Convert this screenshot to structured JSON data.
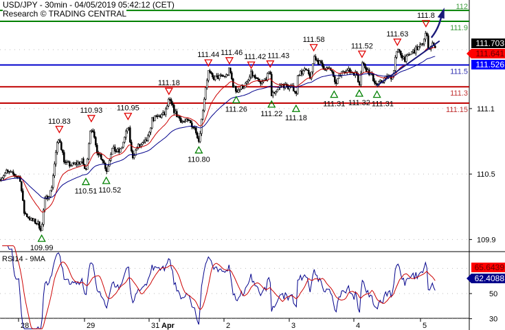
{
  "header": {
    "title": "USD/JPY - 30min - 04/05/2019 05:42:12 (CET)",
    "source": "Research © TRADING CENTRAL"
  },
  "colors": {
    "candles": "#000000",
    "ma_fast": "#cc0000",
    "ma_slow": "#00008b",
    "target": "#008000",
    "pivot": "#0000cc",
    "support": "#c00000",
    "trendline": "#1a1a7a",
    "resistance_marker": "#e00000",
    "support_marker": "#008000"
  },
  "chart_data": [
    {
      "type": "candlestick",
      "title": "USD/JPY - 30min - 04/05/2019 05:42:12 (CET)",
      "y_ticks": [
        "111.1",
        "110.5",
        "109.9"
      ],
      "x_ticks": [
        "28",
        "29",
        "31",
        "Apr",
        "2",
        "3",
        "4",
        "5"
      ],
      "grid": "dotted horizontal",
      "price_path": [
        [
          "03-27 17:00",
          110.45
        ],
        [
          "03-27 19:30",
          110.52
        ],
        [
          "03-28 00:30",
          110.47
        ],
        [
          "03-28 02:00",
          110.15
        ],
        [
          "03-28 04:30",
          110.08
        ],
        [
          "03-28 07:00",
          110.05
        ],
        [
          "03-28 08:30",
          109.99
        ],
        [
          "03-28 09:30",
          110.25
        ],
        [
          "03-28 12:00",
          110.35
        ],
        [
          "03-28 14:00",
          110.75
        ],
        [
          "03-28 15:00",
          110.83
        ],
        [
          "03-28 17:00",
          110.6
        ],
        [
          "03-28 19:30",
          110.58
        ],
        [
          "03-28 23:30",
          110.62
        ],
        [
          "03-29 00:30",
          110.51
        ],
        [
          "03-29 02:00",
          110.9
        ],
        [
          "03-29 02:30",
          110.93
        ],
        [
          "03-29 04:30",
          110.72
        ],
        [
          "03-29 07:00",
          110.62
        ],
        [
          "03-29 08:00",
          110.52
        ],
        [
          "03-29 10:00",
          110.73
        ],
        [
          "03-29 13:00",
          110.7
        ],
        [
          "03-29 15:00",
          110.85
        ],
        [
          "03-29 16:00",
          110.95
        ],
        [
          "03-29 17:30",
          110.65
        ],
        [
          "03-29 19:30",
          110.75
        ],
        [
          "03-29 22:00",
          110.78
        ],
        [
          "03-31 22:00",
          110.85
        ],
        [
          "03-31 22:30",
          111.0
        ],
        [
          "04-01 02:00",
          111.05
        ],
        [
          "04-01 03:30",
          111.18
        ],
        [
          "04-01 06:00",
          111.05
        ],
        [
          "04-01 08:30",
          110.98
        ],
        [
          "04-01 11:00",
          110.98
        ],
        [
          "04-01 13:30",
          110.9
        ],
        [
          "04-01 14:30",
          110.8
        ],
        [
          "04-01 16:00",
          111.1
        ],
        [
          "04-01 17:00",
          111.3
        ],
        [
          "04-01 18:00",
          111.44
        ],
        [
          "04-01 19:30",
          111.38
        ],
        [
          "04-02 01:00",
          111.4
        ],
        [
          "04-02 02:00",
          111.46
        ],
        [
          "04-02 03:30",
          111.3
        ],
        [
          "04-02 04:30",
          111.26
        ],
        [
          "04-02 08:30",
          111.33
        ],
        [
          "04-02 10:00",
          111.42
        ],
        [
          "04-02 13:30",
          111.32
        ],
        [
          "04-02 17:00",
          111.43
        ],
        [
          "04-02 17:30",
          111.22
        ],
        [
          "04-02 21:00",
          111.32
        ],
        [
          "04-03 02:00",
          111.28
        ],
        [
          "04-03 02:30",
          111.18
        ],
        [
          "04-03 03:00",
          111.42
        ],
        [
          "04-03 06:00",
          111.45
        ],
        [
          "04-03 08:00",
          111.38
        ],
        [
          "04-03 09:00",
          111.58
        ],
        [
          "04-03 12:30",
          111.48
        ],
        [
          "04-03 16:00",
          111.44
        ],
        [
          "04-03 16:30",
          111.31
        ],
        [
          "04-03 20:00",
          111.46
        ],
        [
          "04-04 01:00",
          111.42
        ],
        [
          "04-04 02:00",
          111.32
        ],
        [
          "04-04 03:00",
          111.52
        ],
        [
          "04-04 06:30",
          111.4
        ],
        [
          "04-04 08:30",
          111.31
        ],
        [
          "04-04 11:30",
          111.38
        ],
        [
          "04-04 14:30",
          111.4
        ],
        [
          "04-04 15:00",
          111.55
        ],
        [
          "04-04 16:00",
          111.63
        ],
        [
          "04-04 19:00",
          111.55
        ],
        [
          "04-04 21:30",
          111.62
        ],
        [
          "04-05 00:30",
          111.68
        ],
        [
          "04-05 02:00",
          111.8
        ],
        [
          "04-05 03:00",
          111.65
        ],
        [
          "04-05 05:00",
          111.7
        ],
        [
          "04-05 05:30",
          111.64
        ]
      ],
      "resistance_marks": [
        {
          "time": "03-28 15:00",
          "label": "110.83"
        },
        {
          "time": "03-29 02:30",
          "label": "110.93"
        },
        {
          "time": "03-29 16:00",
          "label": "110.95"
        },
        {
          "time": "04-01 03:30",
          "label": "111.18"
        },
        {
          "time": "04-01 18:00",
          "label": "111.44"
        },
        {
          "time": "04-02 02:00",
          "label": "111.46"
        },
        {
          "time": "04-02 10:00",
          "label": "111.42"
        },
        {
          "time": "04-02 17:00",
          "label": "111.43"
        },
        {
          "time": "04-03 09:00",
          "label": "111.58"
        },
        {
          "time": "04-04 03:00",
          "label": "111.52"
        },
        {
          "time": "04-04 16:00",
          "label": "111.63"
        },
        {
          "time": "04-05 02:00",
          "label": "111.8"
        }
      ],
      "support_marks": [
        {
          "time": "03-28 08:30",
          "label": "109.99"
        },
        {
          "time": "03-29 00:30",
          "label": "110.51"
        },
        {
          "time": "03-29 08:00",
          "label": "110.52"
        },
        {
          "time": "04-01 14:30",
          "label": "110.80"
        },
        {
          "time": "04-02 04:30",
          "label": "111.26"
        },
        {
          "time": "04-02 17:30",
          "label": "111.22"
        },
        {
          "time": "04-03 02:30",
          "label": "111.18"
        },
        {
          "time": "04-03 16:30",
          "label": "111.31"
        },
        {
          "time": "04-04 02:00",
          "label": "111.32"
        },
        {
          "time": "04-04 08:30",
          "label": "111.31"
        }
      ],
      "levels": [
        {
          "price": 112,
          "label": "112",
          "role": "target"
        },
        {
          "price": 111.9,
          "label": "111.9",
          "role": "target"
        },
        {
          "price": 111.5,
          "label": "111.5",
          "role": "pivot"
        },
        {
          "price": 111.3,
          "label": "111.3",
          "role": "support"
        },
        {
          "price": 111.15,
          "label": "111.15",
          "role": "support"
        }
      ],
      "trendline": {
        "from": [
          "04-04 08:30",
          111.31
        ],
        "to": [
          "04-05 05:00",
          111.72
        ]
      },
      "arrow": {
        "from": [
          "04-05 04:00",
          111.75
        ],
        "to": [
          "04-05 05:30",
          112.0
        ]
      },
      "price_boxes": [
        {
          "label": "111.703",
          "color": "#000000"
        },
        {
          "label": "111.641",
          "color": "#ff0000"
        },
        {
          "label": "111.526",
          "color": "#0000ff"
        }
      ]
    },
    {
      "type": "line",
      "title": "RSI14 - 9MA",
      "y_ticks": [
        "50",
        "30"
      ],
      "gridlines": [
        70,
        50,
        30
      ],
      "series": [
        {
          "name": "RSI14",
          "last": 62.4088
        },
        {
          "name": "9MA",
          "last": 65.6439
        }
      ],
      "last_labels": [
        {
          "label": "65.6439",
          "color": "#ff0000"
        },
        {
          "label": "62.4088",
          "color": "#00008b"
        }
      ]
    }
  ]
}
